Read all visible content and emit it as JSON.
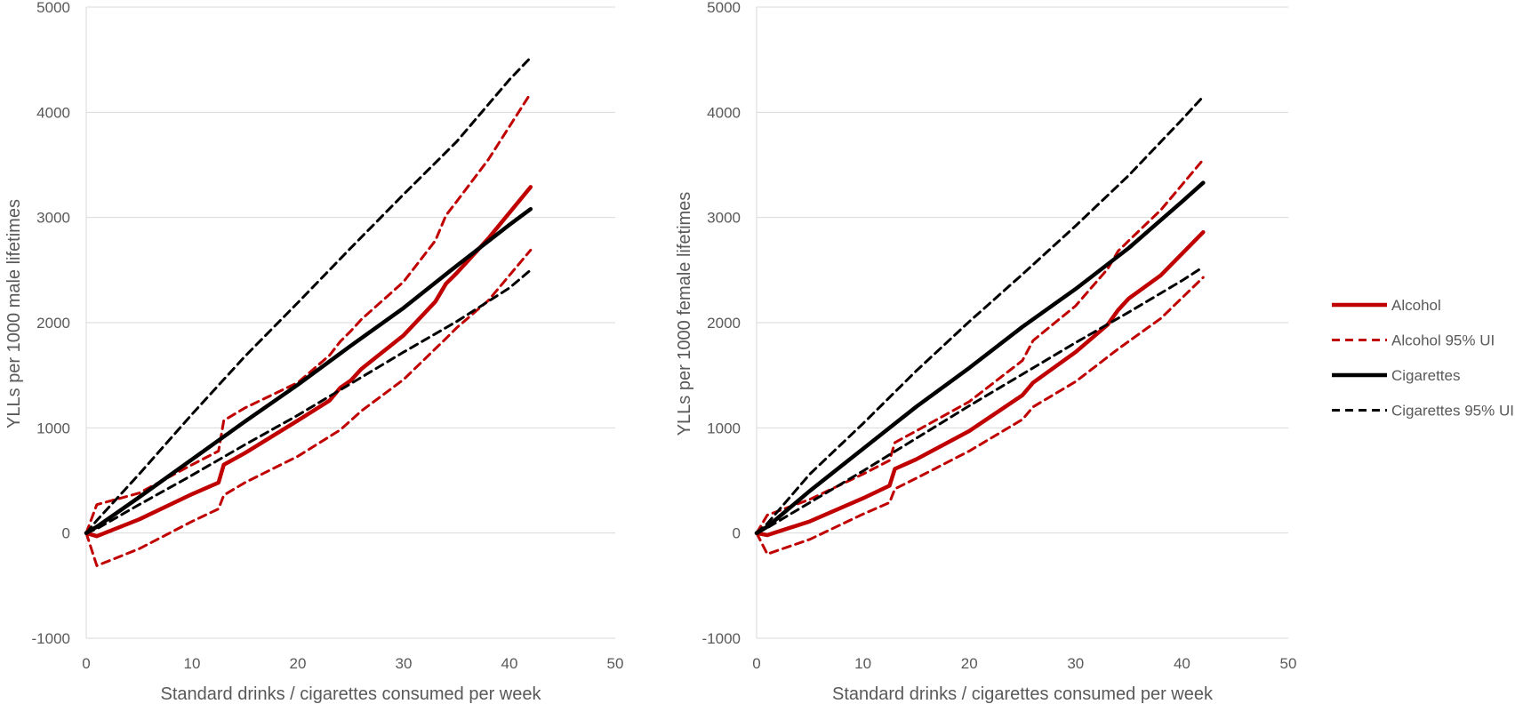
{
  "colors": {
    "alcohol": "#c00000",
    "cigarettes": "#000000",
    "grid": "#d9d9d9",
    "text": "#595959"
  },
  "legend": {
    "items": [
      {
        "label": "Alcohol",
        "color": "#c00000",
        "dashed": false
      },
      {
        "label": "Alcohol 95% UI",
        "color": "#c00000",
        "dashed": true
      },
      {
        "label": "Cigarettes",
        "color": "#000000",
        "dashed": false
      },
      {
        "label": "Cigarettes 95% UI",
        "color": "#000000",
        "dashed": true
      }
    ]
  },
  "chart_data": [
    {
      "type": "line",
      "title": "",
      "xlabel": "Standard drinks / cigarettes consumed per week",
      "ylabel": "YLLs per 1000 male lifetimes",
      "xlim": [
        0,
        50
      ],
      "ylim": [
        -1000,
        5000
      ],
      "xticks": [
        "0",
        "10",
        "20",
        "30",
        "40",
        "50"
      ],
      "yticks": [
        "-1000",
        "0",
        "1000",
        "2000",
        "3000",
        "4000",
        "5000"
      ],
      "grid": true,
      "series": [
        {
          "name": "Alcohol",
          "color": "#c00000",
          "dashed": false,
          "x": [
            0,
            1,
            5,
            10,
            12.5,
            13,
            15,
            20,
            23,
            24,
            25,
            26,
            30,
            33,
            34,
            35,
            38,
            42
          ],
          "y": [
            0,
            -30,
            130,
            370,
            480,
            650,
            760,
            1070,
            1260,
            1380,
            1450,
            1560,
            1880,
            2200,
            2370,
            2470,
            2800,
            3290
          ]
        },
        {
          "name": "Alcohol 95% UI (upper)",
          "color": "#c00000",
          "dashed": true,
          "x": [
            0,
            1,
            5,
            10,
            12.5,
            13,
            15,
            20,
            23,
            24,
            25,
            26,
            30,
            33,
            34,
            35,
            38,
            42
          ],
          "y": [
            0,
            270,
            380,
            650,
            780,
            1070,
            1190,
            1430,
            1690,
            1820,
            1920,
            2030,
            2390,
            2780,
            3020,
            3150,
            3550,
            4180
          ]
        },
        {
          "name": "Alcohol 95% UI (lower)",
          "color": "#c00000",
          "dashed": true,
          "x": [
            0,
            1,
            5,
            10,
            12.5,
            13,
            15,
            20,
            24,
            25,
            26,
            30,
            34,
            35,
            38,
            42
          ],
          "y": [
            0,
            -310,
            -150,
            110,
            230,
            360,
            480,
            730,
            980,
            1070,
            1160,
            1460,
            1850,
            1950,
            2210,
            2690
          ]
        },
        {
          "name": "Cigarettes",
          "color": "#000000",
          "dashed": false,
          "x": [
            0,
            1,
            5,
            10,
            15,
            20,
            25,
            30,
            35,
            40,
            42
          ],
          "y": [
            0,
            60,
            340,
            700,
            1060,
            1410,
            1780,
            2140,
            2540,
            2930,
            3080
          ]
        },
        {
          "name": "Cigarettes 95% UI (upper)",
          "color": "#000000",
          "dashed": true,
          "x": [
            0,
            1,
            5,
            10,
            15,
            20,
            25,
            30,
            35,
            40,
            42
          ],
          "y": [
            0,
            120,
            560,
            1130,
            1680,
            2190,
            2710,
            3220,
            3720,
            4310,
            4520
          ]
        },
        {
          "name": "Cigarettes 95% UI (lower)",
          "color": "#000000",
          "dashed": true,
          "x": [
            0,
            1,
            5,
            10,
            15,
            20,
            25,
            30,
            35,
            40,
            42
          ],
          "y": [
            0,
            40,
            270,
            550,
            840,
            1120,
            1420,
            1720,
            2010,
            2330,
            2500
          ]
        }
      ]
    },
    {
      "type": "line",
      "title": "",
      "xlabel": "Standard drinks / cigarettes consumed per week",
      "ylabel": "YLLs per 1000 female lifetimes",
      "xlim": [
        0,
        50
      ],
      "ylim": [
        -1000,
        5000
      ],
      "xticks": [
        "0",
        "10",
        "20",
        "30",
        "40",
        "50"
      ],
      "yticks": [
        "-1000",
        "0",
        "1000",
        "2000",
        "3000",
        "4000",
        "5000"
      ],
      "grid": true,
      "series": [
        {
          "name": "Alcohol",
          "color": "#c00000",
          "dashed": false,
          "x": [
            0,
            1,
            5,
            10,
            12.5,
            13,
            15,
            20,
            25,
            26,
            30,
            33,
            34,
            35,
            38,
            42
          ],
          "y": [
            0,
            -20,
            110,
            330,
            450,
            610,
            700,
            970,
            1310,
            1430,
            1720,
            1980,
            2120,
            2230,
            2450,
            2860
          ]
        },
        {
          "name": "Alcohol 95% UI (upper)",
          "color": "#c00000",
          "dashed": true,
          "x": [
            0,
            1,
            5,
            10,
            12.5,
            13,
            15,
            20,
            25,
            26,
            30,
            33,
            34,
            35,
            38,
            42
          ],
          "y": [
            0,
            170,
            320,
            560,
            690,
            860,
            970,
            1250,
            1640,
            1830,
            2160,
            2510,
            2680,
            2780,
            3070,
            3550
          ]
        },
        {
          "name": "Alcohol 95% UI (lower)",
          "color": "#c00000",
          "dashed": true,
          "x": [
            0,
            1,
            5,
            10,
            12.5,
            13,
            15,
            20,
            25,
            26,
            30,
            34,
            38,
            42
          ],
          "y": [
            0,
            -200,
            -60,
            180,
            290,
            420,
            520,
            780,
            1080,
            1200,
            1440,
            1750,
            2040,
            2430
          ]
        },
        {
          "name": "Cigarettes",
          "color": "#000000",
          "dashed": false,
          "x": [
            0,
            1,
            5,
            10,
            15,
            20,
            25,
            30,
            35,
            40,
            42
          ],
          "y": [
            0,
            60,
            400,
            800,
            1200,
            1570,
            1960,
            2320,
            2710,
            3150,
            3330
          ]
        },
        {
          "name": "Cigarettes 95% UI (upper)",
          "color": "#000000",
          "dashed": true,
          "x": [
            0,
            1,
            5,
            10,
            15,
            20,
            25,
            30,
            35,
            40,
            42
          ],
          "y": [
            0,
            90,
            560,
            1040,
            1540,
            2010,
            2460,
            2920,
            3400,
            3930,
            4150
          ]
        },
        {
          "name": "Cigarettes 95% UI (lower)",
          "color": "#000000",
          "dashed": true,
          "x": [
            0,
            1,
            5,
            10,
            15,
            20,
            25,
            30,
            35,
            40,
            42
          ],
          "y": [
            0,
            50,
            290,
            590,
            900,
            1210,
            1510,
            1810,
            2100,
            2400,
            2530
          ]
        }
      ]
    }
  ]
}
